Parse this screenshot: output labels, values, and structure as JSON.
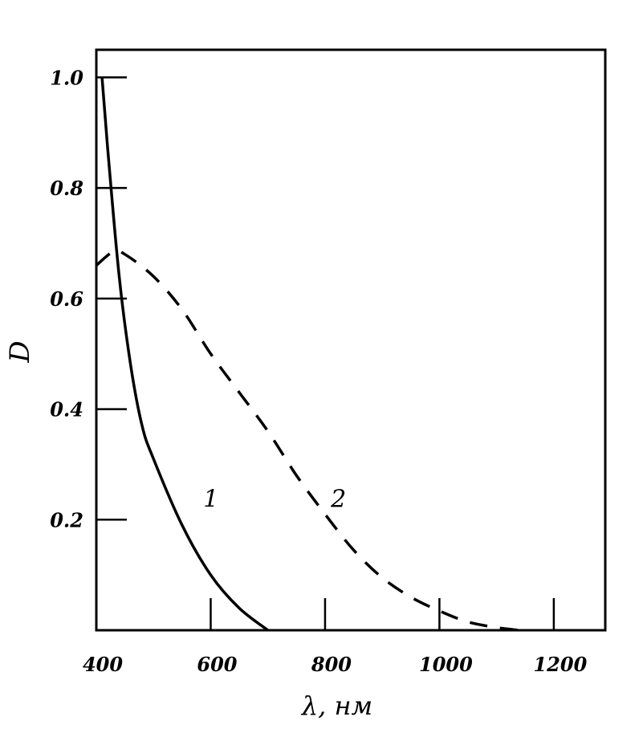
{
  "chart_data": {
    "type": "line",
    "xlabel": "λ, нм",
    "ylabel": "D",
    "xlim": [
      400,
      1290
    ],
    "ylim": [
      0,
      1.05
    ],
    "xticks": [
      {
        "value": 400,
        "label": "400"
      },
      {
        "value": 600,
        "label": "600"
      },
      {
        "value": 800,
        "label": "800"
      },
      {
        "value": 1000,
        "label": "1000"
      },
      {
        "value": 1200,
        "label": "1200"
      }
    ],
    "yticks": [
      {
        "value": 0.2,
        "label": "0.2"
      },
      {
        "value": 0.4,
        "label": "0.4"
      },
      {
        "value": 0.6,
        "label": "0.6"
      },
      {
        "value": 0.8,
        "label": "0.8"
      },
      {
        "value": 1.0,
        "label": "1.0"
      }
    ],
    "grid": false,
    "series": [
      {
        "name": "1",
        "style": "solid",
        "x": [
          410,
          420,
          440,
          460,
          480,
          500,
          550,
          600,
          650,
          700
        ],
        "y": [
          1.0,
          0.87,
          0.64,
          0.48,
          0.37,
          0.31,
          0.19,
          0.1,
          0.04,
          0.0
        ]
      },
      {
        "name": "2",
        "style": "dashed",
        "x": [
          400,
          430,
          450,
          500,
          550,
          600,
          650,
          700,
          750,
          800,
          850,
          900,
          950,
          1000,
          1050,
          1100,
          1140
        ],
        "y": [
          0.66,
          0.685,
          0.68,
          0.64,
          0.58,
          0.5,
          0.43,
          0.36,
          0.28,
          0.21,
          0.145,
          0.095,
          0.06,
          0.035,
          0.015,
          0.005,
          0.0
        ]
      }
    ]
  }
}
